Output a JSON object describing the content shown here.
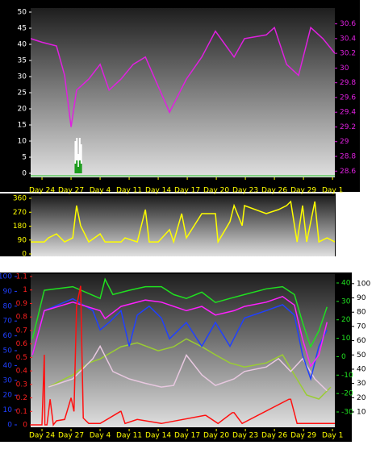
{
  "chart_data": [
    {
      "type": "line",
      "xlim": [
        -0.39,
        10.08
      ],
      "xticks": [
        {
          "value": 0,
          "label": "Day 24"
        },
        {
          "value": 1,
          "label": "Day 27"
        },
        {
          "value": 2,
          "label": "Day 4"
        },
        {
          "value": 3,
          "label": "Day 11"
        },
        {
          "value": 4,
          "label": "Day 14"
        },
        {
          "value": 5,
          "label": "Day 17"
        },
        {
          "value": 6,
          "label": "Day 20"
        },
        {
          "value": 7,
          "label": "Day 23"
        },
        {
          "value": 8,
          "label": "Day 26"
        },
        {
          "value": 9,
          "label": "Day 29"
        },
        {
          "value": 10,
          "label": "Day 1"
        }
      ],
      "x_label_color": "#ffff00",
      "ylim": [
        0,
        50
      ],
      "yticks": [
        0,
        5,
        10,
        15,
        20,
        25,
        30,
        35,
        40,
        45,
        50
      ],
      "y2lim": [
        28.57,
        30.76
      ],
      "y2ticks": [
        28.6,
        28.8,
        29,
        29.2,
        29.4,
        29.6,
        29.8,
        30,
        30.2,
        30.4,
        30.6
      ],
      "axis_colors": {
        "y": "#ffffff",
        "y2": "#e020e0"
      },
      "series": [
        {
          "type": "line",
          "axis": "y2",
          "color": "#e020e0",
          "x": [
            -0.39,
            0,
            0.5,
            0.78,
            1.0,
            1.19,
            1.61,
            2.0,
            2.31,
            2.72,
            3.14,
            3.56,
            4.0,
            4.39,
            4.97,
            5.5,
            5.97,
            6.61,
            6.97,
            7.72,
            8.0,
            8.42,
            8.83,
            9.25,
            9.67,
            10.08
          ],
          "values": [
            30.4,
            30.35,
            30.3,
            29.9,
            29.2,
            29.7,
            29.85,
            30.05,
            29.7,
            29.85,
            30.05,
            30.15,
            29.75,
            29.4,
            29.85,
            30.15,
            30.5,
            30.15,
            30.4,
            30.45,
            30.55,
            30.05,
            29.9,
            30.55,
            30.4,
            30.2
          ]
        },
        {
          "type": "bar",
          "axis": "y",
          "color": "#ffffff",
          "x": [
            1.15,
            1.2,
            1.25,
            1.3,
            1.35
          ],
          "values": [
            10,
            11,
            6,
            11,
            9
          ]
        },
        {
          "type": "bar",
          "axis": "y",
          "color": "#1a9a1a",
          "x": [
            1.15,
            1.2,
            1.25,
            1.3,
            1.35
          ],
          "values": [
            3,
            4,
            2,
            4,
            3
          ]
        }
      ]
    },
    {
      "type": "line",
      "xlim": [
        -0.39,
        10.08
      ],
      "ylim": [
        0,
        360
      ],
      "yticks": [
        0,
        90,
        180,
        270,
        360
      ],
      "axis_colors": {
        "y": "#ffff00"
      },
      "series": [
        {
          "type": "line",
          "axis": "y",
          "color": "#ffff00",
          "x": [
            -0.39,
            0.08,
            0.22,
            0.5,
            0.78,
            1.06,
            1.19,
            1.33,
            1.61,
            2.0,
            2.17,
            2.72,
            2.86,
            3.28,
            3.56,
            3.69,
            4.0,
            4.39,
            4.53,
            4.81,
            4.97,
            5.5,
            5.97,
            6.06,
            6.47,
            6.61,
            6.89,
            6.97,
            7.72,
            8.14,
            8.42,
            8.56,
            8.78,
            8.97,
            9.11,
            9.39,
            9.53,
            9.81,
            10.08
          ],
          "values": [
            78,
            78,
            104,
            130,
            78,
            104,
            313,
            183,
            78,
            130,
            78,
            78,
            104,
            78,
            287,
            78,
            78,
            157,
            78,
            261,
            104,
            261,
            261,
            78,
            209,
            313,
            183,
            313,
            261,
            287,
            313,
            339,
            78,
            313,
            78,
            339,
            78,
            104,
            78
          ]
        }
      ]
    },
    {
      "type": "line",
      "xlim": [
        -0.39,
        10.08
      ],
      "xticks": [
        {
          "value": 0,
          "label": "Day 24"
        },
        {
          "value": 1,
          "label": "Day 27"
        },
        {
          "value": 2,
          "label": "Day 4"
        },
        {
          "value": 3,
          "label": "Day 11"
        },
        {
          "value": 4,
          "label": "Day 14"
        },
        {
          "value": 5,
          "label": "Day 17"
        },
        {
          "value": 6,
          "label": "Day 20"
        },
        {
          "value": 7,
          "label": "Day 23"
        },
        {
          "value": 8,
          "label": "Day 26"
        },
        {
          "value": 9,
          "label": "Day 29"
        },
        {
          "value": 10,
          "label": "Day 1"
        }
      ],
      "x_label_color": "#ffff00",
      "ylim": [
        0,
        100
      ],
      "yticks": [
        0,
        10,
        20,
        30,
        40,
        50,
        60,
        70,
        80,
        90,
        100
      ],
      "y2lim": [
        0,
        1.1
      ],
      "y2ticks": [
        0,
        0.1,
        0.2,
        0.3,
        0.4,
        0.5,
        0.6,
        0.7,
        0.8,
        0.9,
        1,
        1.1
      ],
      "y3lim": [
        -37,
        43.5
      ],
      "y3ticks": [
        -30,
        -20,
        -10,
        0,
        10,
        20,
        30,
        40
      ],
      "y4lim": [
        0.96,
        105
      ],
      "y4ticks": [
        10,
        20,
        30,
        40,
        50,
        60,
        70,
        80,
        90,
        100
      ],
      "axis_colors": {
        "y": "#2040ff",
        "y2": "#ff2020",
        "y3": "#20e020",
        "y4": "#000000"
      },
      "series": [
        {
          "type": "line",
          "axis": "y3",
          "color": "#9acd32",
          "x": [
            0.22,
            1.06,
            1.61,
            2.0,
            2.72,
            3.28,
            4.0,
            4.53,
            4.97,
            5.5,
            5.97,
            6.47,
            6.97,
            7.72,
            8.28,
            8.69,
            9.11,
            9.53,
            9.94
          ],
          "values": [
            -16.5,
            -9.9,
            -3.4,
            -1.2,
            5.4,
            7.5,
            3.2,
            5.4,
            9.7,
            5.4,
            1,
            -3.4,
            -5.6,
            -3.4,
            1,
            -9.9,
            -20.8,
            -23,
            -16.5
          ]
        },
        {
          "type": "line",
          "axis": "y",
          "color": "#e8c8e0",
          "x": [
            0.22,
            1.06,
            1.75,
            2.0,
            2.44,
            3.0,
            3.56,
            4.11,
            4.53,
            4.97,
            5.5,
            5.97,
            6.61,
            6.97,
            7.72,
            8.14,
            8.56,
            8.97,
            9.39,
            9.81
          ],
          "values": [
            25.5,
            31,
            44.6,
            53,
            36,
            31,
            28,
            25.5,
            26.6,
            47,
            33.7,
            26.6,
            31,
            36,
            39,
            44.6,
            36,
            44.6,
            31,
            23
          ]
        },
        {
          "type": "line",
          "axis": "y3",
          "color": "#20e020",
          "x": [
            -0.33,
            0.08,
            1.06,
            2.0,
            2.17,
            2.44,
            3.0,
            3.56,
            4.11,
            4.53,
            4.97,
            5.5,
            5.97,
            6.47,
            6.97,
            7.72,
            8.28,
            8.69,
            8.97,
            9.25,
            9.53,
            9.81
          ],
          "values": [
            9.7,
            36,
            38,
            31.6,
            42,
            33.7,
            36,
            38,
            38,
            33.7,
            31.6,
            35,
            29.4,
            31.6,
            33.7,
            36.8,
            38,
            33.7,
            18.5,
            5.4,
            14,
            27
          ]
        },
        {
          "type": "line",
          "axis": "y",
          "color": "#2040ff",
          "x": [
            -0.33,
            0.08,
            1.06,
            1.75,
            2.0,
            2.31,
            2.72,
            3.0,
            3.28,
            3.69,
            4.11,
            4.39,
            4.97,
            5.5,
            5.97,
            6.47,
            6.97,
            7.72,
            8.28,
            8.69,
            8.97,
            9.25,
            9.53,
            9.81
          ],
          "values": [
            47,
            77,
            85,
            77,
            64,
            69,
            77,
            53,
            74,
            80,
            72,
            58,
            69,
            53,
            69,
            53,
            72,
            77,
            81,
            74,
            47,
            31,
            53,
            64
          ]
        },
        {
          "type": "line",
          "axis": "y4",
          "color": "#ff20ff",
          "x": [
            -0.33,
            0.08,
            1.06,
            2.0,
            2.17,
            2.72,
            3.56,
            4.11,
            4.97,
            5.5,
            5.97,
            6.61,
            6.97,
            7.72,
            8.28,
            8.69,
            8.97,
            9.25,
            9.53,
            9.81
          ],
          "values": [
            50,
            81,
            87,
            81,
            75.5,
            84,
            88.5,
            87,
            81,
            84,
            78,
            81,
            84,
            87,
            91,
            85,
            61,
            42,
            50,
            73
          ]
        },
        {
          "type": "line",
          "axis": "y2",
          "color": "#ff1010",
          "x": [
            -0.39,
            0.0,
            0.08,
            0.1,
            0.17,
            0.28,
            0.39,
            0.5,
            0.78,
            1.0,
            1.1,
            1.19,
            1.33,
            1.42,
            1.61,
            2.0,
            2.7,
            2.72,
            2.86,
            3.28,
            4.11,
            5.6,
            5.64,
            6.06,
            6.55,
            6.61,
            6.89,
            8.5,
            8.56,
            8.78,
            10.08
          ],
          "values": [
            0,
            0,
            0.52,
            0,
            0,
            0.19,
            0,
            0.03,
            0.04,
            0.2,
            0.1,
            0.88,
            1.03,
            0.05,
            0.01,
            0.01,
            0.1,
            0.1,
            0.01,
            0.04,
            0.01,
            0.07,
            0.07,
            0.01,
            0.09,
            0.09,
            0.01,
            0.19,
            0.19,
            0.01,
            0.01
          ]
        }
      ]
    }
  ]
}
